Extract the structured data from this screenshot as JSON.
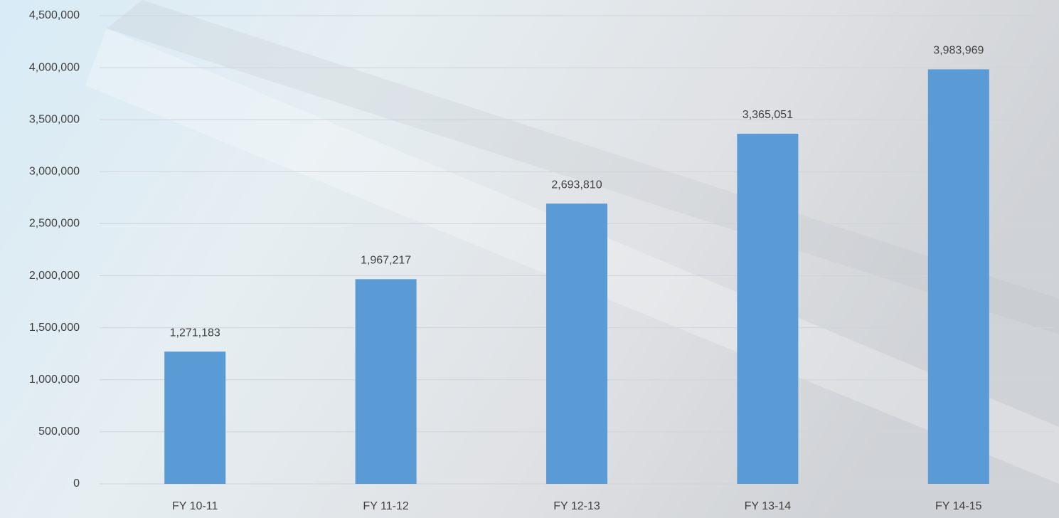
{
  "chart_data": {
    "type": "bar",
    "categories": [
      "FY 10-11",
      "FY 11-12",
      "FY 12-13",
      "FY 13-14",
      "FY 14-15"
    ],
    "values": [
      1271183,
      1967217,
      2693810,
      3365051,
      3983969
    ],
    "value_labels": [
      "1,271,183",
      "1,967,217",
      "2,693,810",
      "3,365,051",
      "3,983,969"
    ],
    "color": "#5b9bd5",
    "ylim": [
      0,
      4500000
    ],
    "yticks": [
      0,
      {
        "value": 500000,
        "label": "500,000"
      },
      {
        "value": 1000000,
        "label": "1,000,000"
      },
      {
        "value": 1500000,
        "label": "1,500,000"
      },
      {
        "value": 2000000,
        "label": "2,000,000"
      },
      {
        "value": 2500000,
        "label": "2,500,000"
      },
      {
        "value": 3000000,
        "label": "3,000,000"
      },
      {
        "value": 3500000,
        "label": "3,500,000"
      },
      {
        "value": 4000000,
        "label": "4,000,000"
      },
      {
        "value": 4500000,
        "label": "4,500,000"
      }
    ],
    "grid": true
  }
}
